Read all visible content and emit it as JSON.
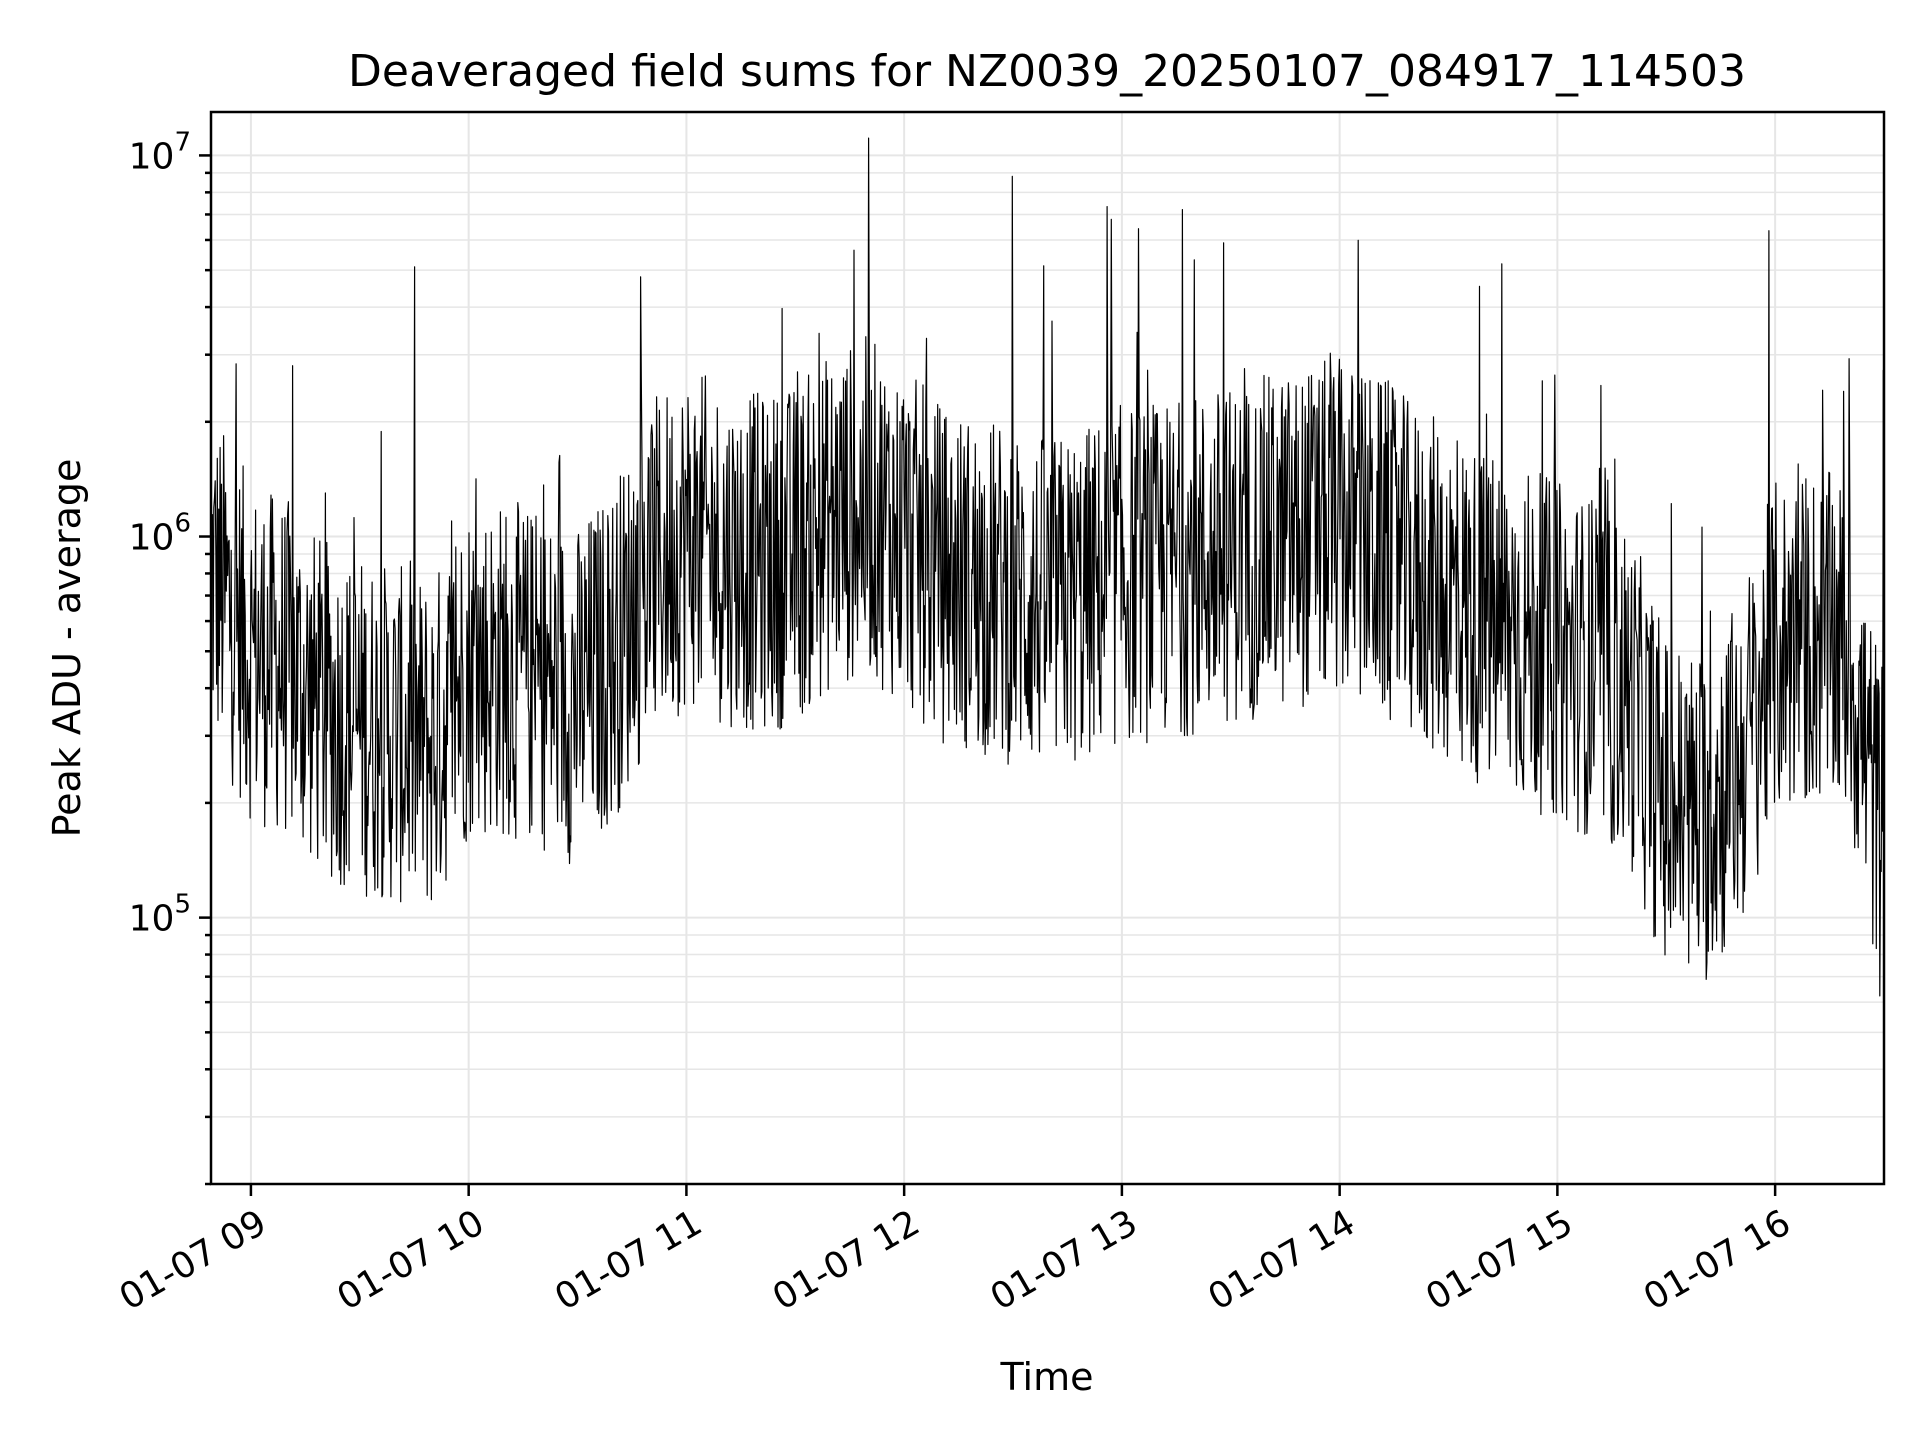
{
  "chart_data": {
    "type": "line",
    "title": "Deaveraged field sums for NZ0039_20250107_084917_114503",
    "xlabel": "Time",
    "ylabel": "Peak ADU - average",
    "yscale": "log",
    "grid": true,
    "xlim": [
      "2025-01-07 08:49",
      "2025-01-07 16:30"
    ],
    "ylim": [
      20000,
      13000000
    ],
    "x_ticks": [
      {
        "value": "2025-01-07 09:00",
        "label": "01-07 09"
      },
      {
        "value": "2025-01-07 10:00",
        "label": "01-07 10"
      },
      {
        "value": "2025-01-07 11:00",
        "label": "01-07 11"
      },
      {
        "value": "2025-01-07 12:00",
        "label": "01-07 12"
      },
      {
        "value": "2025-01-07 13:00",
        "label": "01-07 13"
      },
      {
        "value": "2025-01-07 14:00",
        "label": "01-07 14"
      },
      {
        "value": "2025-01-07 15:00",
        "label": "01-07 15"
      },
      {
        "value": "2025-01-07 16:00",
        "label": "01-07 16"
      }
    ],
    "y_ticks": [
      {
        "value": 100000,
        "base": "10",
        "exp": "5"
      },
      {
        "value": 1000000,
        "base": "10",
        "exp": "6"
      },
      {
        "value": 10000000,
        "base": "10",
        "exp": "7"
      }
    ],
    "series_color": "#000000",
    "series": [
      {
        "x": [
          "2025-01-07 08:49",
          "2025-01-07 09:00",
          "2025-01-07 09:10",
          "2025-01-07 09:20",
          "2025-01-07 09:30",
          "2025-01-07 09:40",
          "2025-01-07 09:50",
          "2025-01-07 10:00",
          "2025-01-07 10:10",
          "2025-01-07 10:20",
          "2025-01-07 10:30",
          "2025-01-07 10:40",
          "2025-01-07 10:50",
          "2025-01-07 11:00",
          "2025-01-07 11:10",
          "2025-01-07 11:20",
          "2025-01-07 11:30",
          "2025-01-07 11:40",
          "2025-01-07 11:50",
          "2025-01-07 12:00",
          "2025-01-07 12:10",
          "2025-01-07 12:20",
          "2025-01-07 12:30",
          "2025-01-07 12:40",
          "2025-01-07 12:50",
          "2025-01-07 13:00",
          "2025-01-07 13:10",
          "2025-01-07 13:20",
          "2025-01-07 13:30",
          "2025-01-07 13:40",
          "2025-01-07 13:50",
          "2025-01-07 14:00",
          "2025-01-07 14:10",
          "2025-01-07 14:20",
          "2025-01-07 14:30",
          "2025-01-07 14:40",
          "2025-01-07 14:50",
          "2025-01-07 15:00",
          "2025-01-07 15:10",
          "2025-01-07 15:20",
          "2025-01-07 15:30",
          "2025-01-07 15:40",
          "2025-01-07 15:50",
          "2025-01-07 16:00",
          "2025-01-07 16:10",
          "2025-01-07 16:20",
          "2025-01-07 16:30"
        ],
        "values": [
          800000,
          500000,
          450000,
          350000,
          320000,
          300000,
          280000,
          450000,
          450000,
          420000,
          380000,
          500000,
          800000,
          1000000,
          900000,
          850000,
          900000,
          1100000,
          1200000,
          1000000,
          800000,
          750000,
          700000,
          650000,
          700000,
          800000,
          800000,
          850000,
          900000,
          950000,
          1000000,
          1050000,
          950000,
          800000,
          700000,
          600000,
          550000,
          500000,
          450000,
          380000,
          200000,
          180000,
          250000,
          500000,
          550000,
          500000,
          150000
        ]
      }
    ]
  }
}
